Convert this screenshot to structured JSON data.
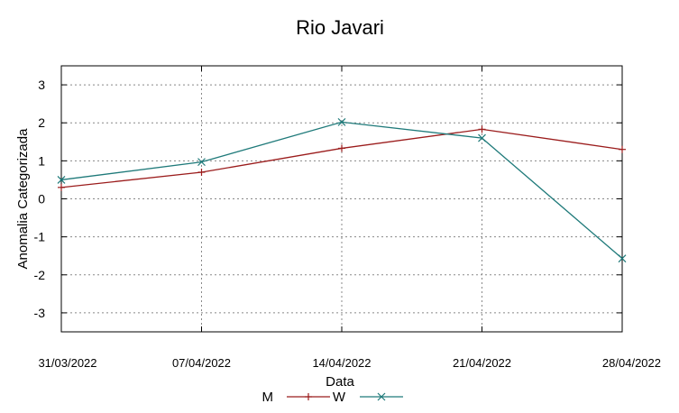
{
  "chart_data": {
    "type": "line",
    "title": "Rio Javari",
    "xlabel": "Data",
    "ylabel": "Anomalia Categorizada",
    "categories": [
      "31/03/2022",
      "07/04/2022",
      "14/04/2022",
      "21/04/2022",
      "28/04/2022"
    ],
    "ylim": [
      -3.5,
      3.5
    ],
    "yticks": [
      -3,
      -2,
      -1,
      0,
      1,
      2,
      3
    ],
    "grid": true,
    "legend": "bottom-center",
    "series": [
      {
        "name": "M",
        "values": [
          0.3,
          0.7,
          1.33,
          1.83,
          1.3
        ],
        "color": "#9b1c1c",
        "marker": "plus"
      },
      {
        "name": "W",
        "values": [
          0.5,
          0.97,
          2.02,
          1.6,
          -1.57
        ],
        "color": "#1f7a7a",
        "marker": "x"
      }
    ]
  }
}
